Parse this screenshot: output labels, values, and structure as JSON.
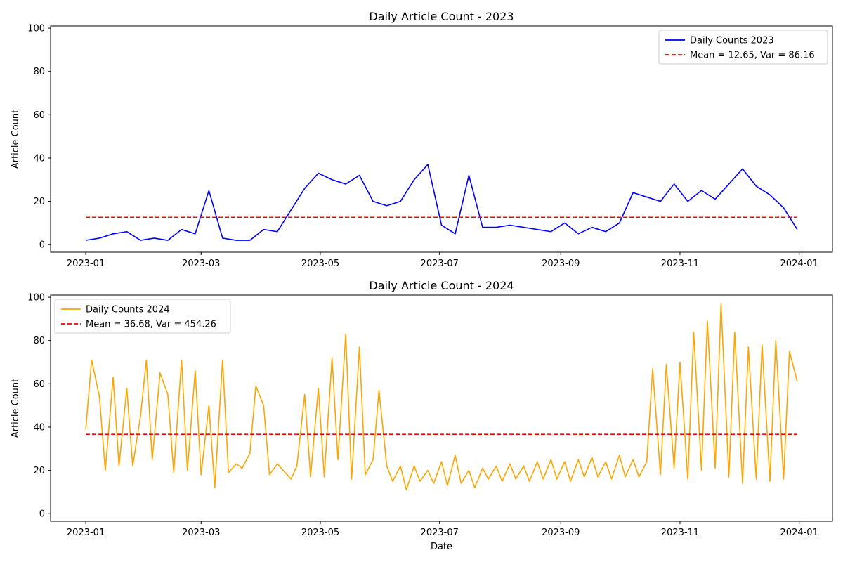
{
  "chart_data": [
    {
      "type": "line",
      "title": "Daily Article Count - 2023",
      "xlabel": "",
      "ylabel": "Article Count",
      "xlim": [
        "2022-12-14",
        "2024-01-18"
      ],
      "ylim": [
        -3.5,
        101
      ],
      "yticks": [
        0,
        20,
        40,
        60,
        80,
        100
      ],
      "xticks": [
        "2023-01",
        "2023-03",
        "2023-05",
        "2023-07",
        "2023-09",
        "2023-11",
        "2024-01"
      ],
      "xtick_dates": [
        "2023-01-01",
        "2023-03-01",
        "2023-05-01",
        "2023-07-01",
        "2023-09-01",
        "2023-11-01",
        "2024-01-01"
      ],
      "grid": false,
      "legend_position": "upper right",
      "legend": [
        "Daily Counts 2023",
        "Mean = 12.65, Var = 86.16"
      ],
      "series": [
        {
          "name": "Daily Counts 2023",
          "color": "#0000ff",
          "points": [
            [
              "2023-01-01",
              2
            ],
            [
              "2023-01-08",
              3
            ],
            [
              "2023-01-15",
              5
            ],
            [
              "2023-01-22",
              6
            ],
            [
              "2023-01-29",
              2
            ],
            [
              "2023-02-05",
              3
            ],
            [
              "2023-02-12",
              2
            ],
            [
              "2023-02-19",
              7
            ],
            [
              "2023-02-26",
              5
            ],
            [
              "2023-03-05",
              25
            ],
            [
              "2023-03-12",
              3
            ],
            [
              "2023-03-19",
              2
            ],
            [
              "2023-03-26",
              2
            ],
            [
              "2023-04-02",
              7
            ],
            [
              "2023-04-09",
              6
            ],
            [
              "2023-04-16",
              16
            ],
            [
              "2023-04-23",
              26
            ],
            [
              "2023-04-30",
              33
            ],
            [
              "2023-05-07",
              30
            ],
            [
              "2023-05-14",
              28
            ],
            [
              "2023-05-21",
              32
            ],
            [
              "2023-05-28",
              20
            ],
            [
              "2023-06-04",
              18
            ],
            [
              "2023-06-11",
              20
            ],
            [
              "2023-06-18",
              30
            ],
            [
              "2023-06-25",
              37
            ],
            [
              "2023-07-02",
              9
            ],
            [
              "2023-07-09",
              5
            ],
            [
              "2023-07-16",
              32
            ],
            [
              "2023-07-23",
              8
            ],
            [
              "2023-07-30",
              8
            ],
            [
              "2023-08-06",
              9
            ],
            [
              "2023-08-13",
              8
            ],
            [
              "2023-08-20",
              7
            ],
            [
              "2023-08-27",
              6
            ],
            [
              "2023-09-03",
              10
            ],
            [
              "2023-09-10",
              5
            ],
            [
              "2023-09-17",
              8
            ],
            [
              "2023-09-24",
              6
            ],
            [
              "2023-10-01",
              10
            ],
            [
              "2023-10-08",
              24
            ],
            [
              "2023-10-15",
              22
            ],
            [
              "2023-10-22",
              20
            ],
            [
              "2023-10-29",
              28
            ],
            [
              "2023-11-05",
              20
            ],
            [
              "2023-11-12",
              25
            ],
            [
              "2023-11-19",
              21
            ],
            [
              "2023-11-26",
              28
            ],
            [
              "2023-12-03",
              35
            ],
            [
              "2023-12-10",
              27
            ],
            [
              "2023-12-17",
              23
            ],
            [
              "2023-12-24",
              17
            ],
            [
              "2023-12-31",
              7
            ]
          ]
        },
        {
          "name": "Mean = 12.65, Var = 86.16",
          "color": "#ff0000",
          "style": "dashed",
          "points": [
            [
              "2023-01-01",
              12.65
            ],
            [
              "2023-12-31",
              12.65
            ]
          ]
        }
      ]
    },
    {
      "type": "line",
      "title": "Daily Article Count - 2024",
      "xlabel": "Date",
      "ylabel": "Article Count",
      "xlim": [
        "2022-12-14",
        "2024-01-18"
      ],
      "ylim": [
        -3.5,
        101
      ],
      "yticks": [
        0,
        20,
        40,
        60,
        80,
        100
      ],
      "xticks": [
        "2023-01",
        "2023-03",
        "2023-05",
        "2023-07",
        "2023-09",
        "2023-11",
        "2024-01"
      ],
      "xtick_dates": [
        "2023-01-01",
        "2023-03-01",
        "2023-05-01",
        "2023-07-01",
        "2023-09-01",
        "2023-11-01",
        "2024-01-01"
      ],
      "grid": false,
      "legend_position": "upper left",
      "legend": [
        "Daily Counts 2024",
        "Mean = 36.68, Var = 454.26"
      ],
      "series": [
        {
          "name": "Daily Counts 2024",
          "color": "#ffa500",
          "points": [
            [
              "2023-01-01",
              39
            ],
            [
              "2023-01-04",
              71
            ],
            [
              "2023-01-08",
              54
            ],
            [
              "2023-01-11",
              20
            ],
            [
              "2023-01-15",
              63
            ],
            [
              "2023-01-18",
              22
            ],
            [
              "2023-01-22",
              58
            ],
            [
              "2023-01-25",
              22
            ],
            [
              "2023-01-29",
              45
            ],
            [
              "2023-02-01",
              71
            ],
            [
              "2023-02-04",
              25
            ],
            [
              "2023-02-08",
              65
            ],
            [
              "2023-02-12",
              55
            ],
            [
              "2023-02-15",
              19
            ],
            [
              "2023-02-19",
              71
            ],
            [
              "2023-02-22",
              20
            ],
            [
              "2023-02-26",
              66
            ],
            [
              "2023-03-01",
              18
            ],
            [
              "2023-03-05",
              50
            ],
            [
              "2023-03-08",
              12
            ],
            [
              "2023-03-12",
              71
            ],
            [
              "2023-03-15",
              19
            ],
            [
              "2023-03-19",
              23
            ],
            [
              "2023-03-22",
              21
            ],
            [
              "2023-03-26",
              28
            ],
            [
              "2023-03-29",
              59
            ],
            [
              "2023-04-02",
              50
            ],
            [
              "2023-04-05",
              18
            ],
            [
              "2023-04-09",
              23
            ],
            [
              "2023-04-12",
              20
            ],
            [
              "2023-04-16",
              16
            ],
            [
              "2023-04-19",
              22
            ],
            [
              "2023-04-23",
              55
            ],
            [
              "2023-04-26",
              17
            ],
            [
              "2023-04-30",
              58
            ],
            [
              "2023-05-03",
              17
            ],
            [
              "2023-05-07",
              72
            ],
            [
              "2023-05-10",
              25
            ],
            [
              "2023-05-14",
              83
            ],
            [
              "2023-05-17",
              16
            ],
            [
              "2023-05-21",
              77
            ],
            [
              "2023-05-24",
              18
            ],
            [
              "2023-05-28",
              25
            ],
            [
              "2023-05-31",
              57
            ],
            [
              "2023-06-04",
              22
            ],
            [
              "2023-06-07",
              15
            ],
            [
              "2023-06-11",
              22
            ],
            [
              "2023-06-14",
              11
            ],
            [
              "2023-06-18",
              22
            ],
            [
              "2023-06-21",
              15
            ],
            [
              "2023-06-25",
              20
            ],
            [
              "2023-06-28",
              14
            ],
            [
              "2023-07-02",
              24
            ],
            [
              "2023-07-05",
              13
            ],
            [
              "2023-07-09",
              27
            ],
            [
              "2023-07-12",
              14
            ],
            [
              "2023-07-16",
              20
            ],
            [
              "2023-07-19",
              12
            ],
            [
              "2023-07-23",
              21
            ],
            [
              "2023-07-26",
              16
            ],
            [
              "2023-07-30",
              22
            ],
            [
              "2023-08-02",
              15
            ],
            [
              "2023-08-06",
              23
            ],
            [
              "2023-08-09",
              16
            ],
            [
              "2023-08-13",
              22
            ],
            [
              "2023-08-16",
              15
            ],
            [
              "2023-08-20",
              24
            ],
            [
              "2023-08-23",
              16
            ],
            [
              "2023-08-27",
              25
            ],
            [
              "2023-08-30",
              16
            ],
            [
              "2023-09-03",
              24
            ],
            [
              "2023-09-06",
              15
            ],
            [
              "2023-09-10",
              25
            ],
            [
              "2023-09-13",
              17
            ],
            [
              "2023-09-17",
              26
            ],
            [
              "2023-09-20",
              17
            ],
            [
              "2023-09-24",
              24
            ],
            [
              "2023-09-27",
              16
            ],
            [
              "2023-10-01",
              27
            ],
            [
              "2023-10-04",
              17
            ],
            [
              "2023-10-08",
              25
            ],
            [
              "2023-10-11",
              17
            ],
            [
              "2023-10-15",
              24
            ],
            [
              "2023-10-18",
              67
            ],
            [
              "2023-10-22",
              18
            ],
            [
              "2023-10-25",
              69
            ],
            [
              "2023-10-29",
              21
            ],
            [
              "2023-11-01",
              70
            ],
            [
              "2023-11-05",
              16
            ],
            [
              "2023-11-08",
              84
            ],
            [
              "2023-11-12",
              20
            ],
            [
              "2023-11-15",
              89
            ],
            [
              "2023-11-19",
              21
            ],
            [
              "2023-11-22",
              97
            ],
            [
              "2023-11-26",
              17
            ],
            [
              "2023-11-29",
              84
            ],
            [
              "2023-12-03",
              14
            ],
            [
              "2023-12-06",
              77
            ],
            [
              "2023-12-10",
              16
            ],
            [
              "2023-12-13",
              78
            ],
            [
              "2023-12-17",
              15
            ],
            [
              "2023-12-20",
              80
            ],
            [
              "2023-12-24",
              16
            ],
            [
              "2023-12-27",
              75
            ],
            [
              "2023-12-31",
              61
            ]
          ]
        },
        {
          "name": "Mean = 36.68, Var = 454.26",
          "color": "#ff0000",
          "style": "dashed",
          "points": [
            [
              "2023-01-01",
              36.68
            ],
            [
              "2023-12-31",
              36.68
            ]
          ]
        }
      ]
    }
  ]
}
